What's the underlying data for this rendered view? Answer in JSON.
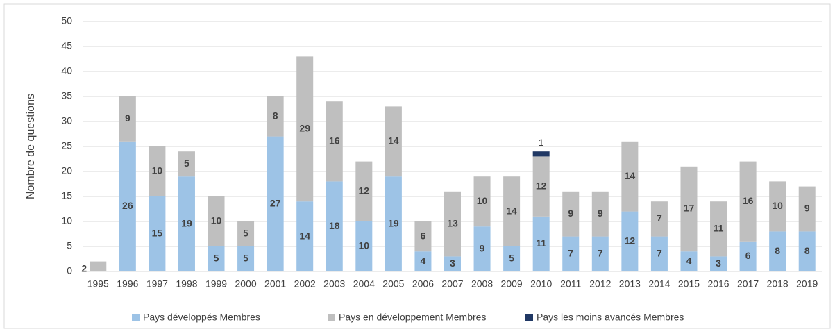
{
  "chart_data": {
    "type": "stacked_bar",
    "y_label": "Nombre de questions",
    "categories": [
      "1995",
      "1996",
      "1997",
      "1998",
      "1999",
      "2000",
      "2001",
      "2002",
      "2003",
      "2004",
      "2005",
      "2006",
      "2007",
      "2008",
      "2009",
      "2010",
      "2011",
      "2012",
      "2013",
      "2014",
      "2015",
      "2016",
      "2017",
      "2018",
      "2019"
    ],
    "series": [
      {
        "name": "Pays développés Membres",
        "color": "#9dc3e6",
        "values": [
          0,
          26,
          15,
          19,
          5,
          5,
          27,
          14,
          18,
          10,
          19,
          4,
          3,
          9,
          5,
          11,
          7,
          7,
          12,
          7,
          4,
          3,
          6,
          8,
          8
        ]
      },
      {
        "name": "Pays en développement Membres",
        "color": "#bfbfbf",
        "values": [
          2,
          9,
          10,
          5,
          10,
          5,
          8,
          29,
          16,
          12,
          14,
          6,
          13,
          10,
          14,
          12,
          9,
          9,
          14,
          7,
          17,
          11,
          16,
          10,
          9
        ]
      },
      {
        "name": "Pays les moins avancés Membres",
        "color": "#203864",
        "values": [
          null,
          null,
          null,
          null,
          null,
          null,
          null,
          null,
          null,
          null,
          null,
          null,
          null,
          null,
          null,
          1,
          null,
          null,
          null,
          null,
          null,
          null,
          null,
          null,
          null
        ]
      }
    ],
    "ylim": [
      0,
      50
    ],
    "yticks": [
      0,
      5,
      10,
      15,
      20,
      25,
      30,
      35,
      40,
      45,
      50
    ],
    "grid": true,
    "legend": "bottom"
  }
}
